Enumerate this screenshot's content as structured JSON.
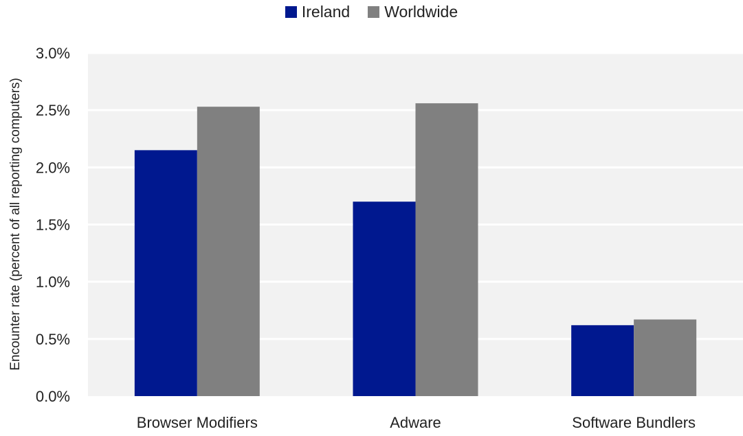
{
  "chart_data": {
    "type": "bar",
    "categories": [
      "Browser Modifiers",
      "Adware",
      "Software Bundlers"
    ],
    "series": [
      {
        "name": "Ireland",
        "values": [
          2.15,
          1.7,
          0.62
        ],
        "color": "#00188f"
      },
      {
        "name": "Worldwide",
        "values": [
          2.53,
          2.56,
          0.67
        ],
        "color": "#808080"
      }
    ],
    "ylabel": "Encounter rate (percent of all reporting computers)",
    "xlabel": "",
    "ylim": [
      0,
      3.0
    ],
    "yticks": [
      "0.0%",
      "0.5%",
      "1.0%",
      "1.5%",
      "2.0%",
      "2.5%",
      "3.0%"
    ],
    "grid": true,
    "legend_position": "top-center",
    "plot_background": "#f2f2f2"
  }
}
